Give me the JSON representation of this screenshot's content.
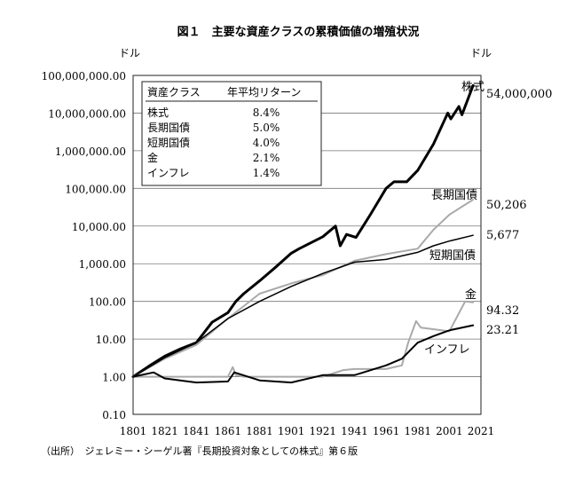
{
  "chart_data": {
    "type": "line",
    "title": "図１　主要な資産クラスの累積価値の増殖状況",
    "ylabel_left": "ドル",
    "ylabel_right": "ドル",
    "yscale": "log",
    "ylim": [
      0.1,
      100000000
    ],
    "xlim": [
      1801,
      2021
    ],
    "grid": true,
    "x_ticks": [
      "1801",
      "1821",
      "1841",
      "1861",
      "1881",
      "1901",
      "1921",
      "1941",
      "1961",
      "1981",
      "2001",
      "2021"
    ],
    "y_ticks": [
      "100,000,000.00",
      "10,000,000.00",
      "1,000,000.00",
      "100,000.00",
      "10,000.00",
      "1,000.00",
      "100.00",
      "10.00",
      "1.00",
      "0.10"
    ],
    "source_note": "（出所）　ジェレミー・シーゲル著『長期投資対象としての株式』第６版",
    "legend_table": {
      "header": [
        "資産クラス",
        "年平均リターン"
      ],
      "rows": [
        [
          "株式",
          "8.4%"
        ],
        [
          "長期国債",
          "5.0%"
        ],
        [
          "短期国債",
          "4.0%"
        ],
        [
          "金",
          "2.1%"
        ],
        [
          "インフレ",
          "1.4%"
        ]
      ]
    },
    "series": [
      {
        "name": "株式",
        "end_label": "54,000,000",
        "color": "#000000",
        "x": [
          1801,
          1811,
          1821,
          1831,
          1841,
          1851,
          1861,
          1866,
          1871,
          1881,
          1891,
          1901,
          1906,
          1911,
          1921,
          1929,
          1932,
          1936,
          1942,
          1951,
          1961,
          1966,
          1974,
          1981,
          1991,
          2000,
          2002,
          2007,
          2009,
          2016
        ],
        "values": [
          1,
          1.9,
          3.5,
          5.5,
          8,
          28,
          50,
          100,
          160,
          350,
          800,
          1900,
          2500,
          3200,
          5200,
          10000,
          3000,
          6000,
          5000,
          20000,
          100000,
          150000,
          150000,
          300000,
          1500000,
          10000000,
          7000000,
          15000000,
          9000000,
          54000000
        ]
      },
      {
        "name": "長期国債",
        "end_label": "50,206",
        "color": "#aaaaaa",
        "x": [
          1801,
          1821,
          1841,
          1861,
          1881,
          1901,
          1921,
          1941,
          1961,
          1981,
          1991,
          2001,
          2016
        ],
        "values": [
          1,
          3,
          7,
          35,
          160,
          300,
          500,
          1200,
          1800,
          2500,
          8000,
          20000,
          50206
        ]
      },
      {
        "name": "短期国債",
        "end_label": "5,677",
        "color": "#000000",
        "x": [
          1801,
          1821,
          1841,
          1861,
          1881,
          1901,
          1921,
          1941,
          1961,
          1981,
          1991,
          2001,
          2016
        ],
        "values": [
          1,
          3.2,
          8,
          35,
          100,
          250,
          550,
          1100,
          1300,
          2000,
          3000,
          4000,
          5677
        ]
      },
      {
        "name": "金",
        "end_label": "94.32",
        "color": "#aaaaaa",
        "x": [
          1801,
          1861,
          1864,
          1866,
          1871,
          1921,
          1934,
          1941,
          1961,
          1971,
          1975,
          1980,
          1983,
          2001,
          2011,
          2016
        ],
        "values": [
          1,
          1,
          1.8,
          1.1,
          1,
          1,
          1.5,
          1.6,
          1.6,
          2,
          8,
          30,
          20,
          16,
          100,
          94.32
        ]
      },
      {
        "name": "インフレ",
        "end_label": "23.21",
        "color": "#000000",
        "x": [
          1801,
          1814,
          1821,
          1841,
          1861,
          1865,
          1881,
          1901,
          1921,
          1941,
          1961,
          1971,
          1981,
          1991,
          2001,
          2016
        ],
        "values": [
          1,
          1.3,
          0.9,
          0.7,
          0.75,
          1.3,
          0.8,
          0.7,
          1.1,
          1.1,
          2,
          3,
          8,
          12,
          17,
          23.21
        ]
      }
    ]
  }
}
